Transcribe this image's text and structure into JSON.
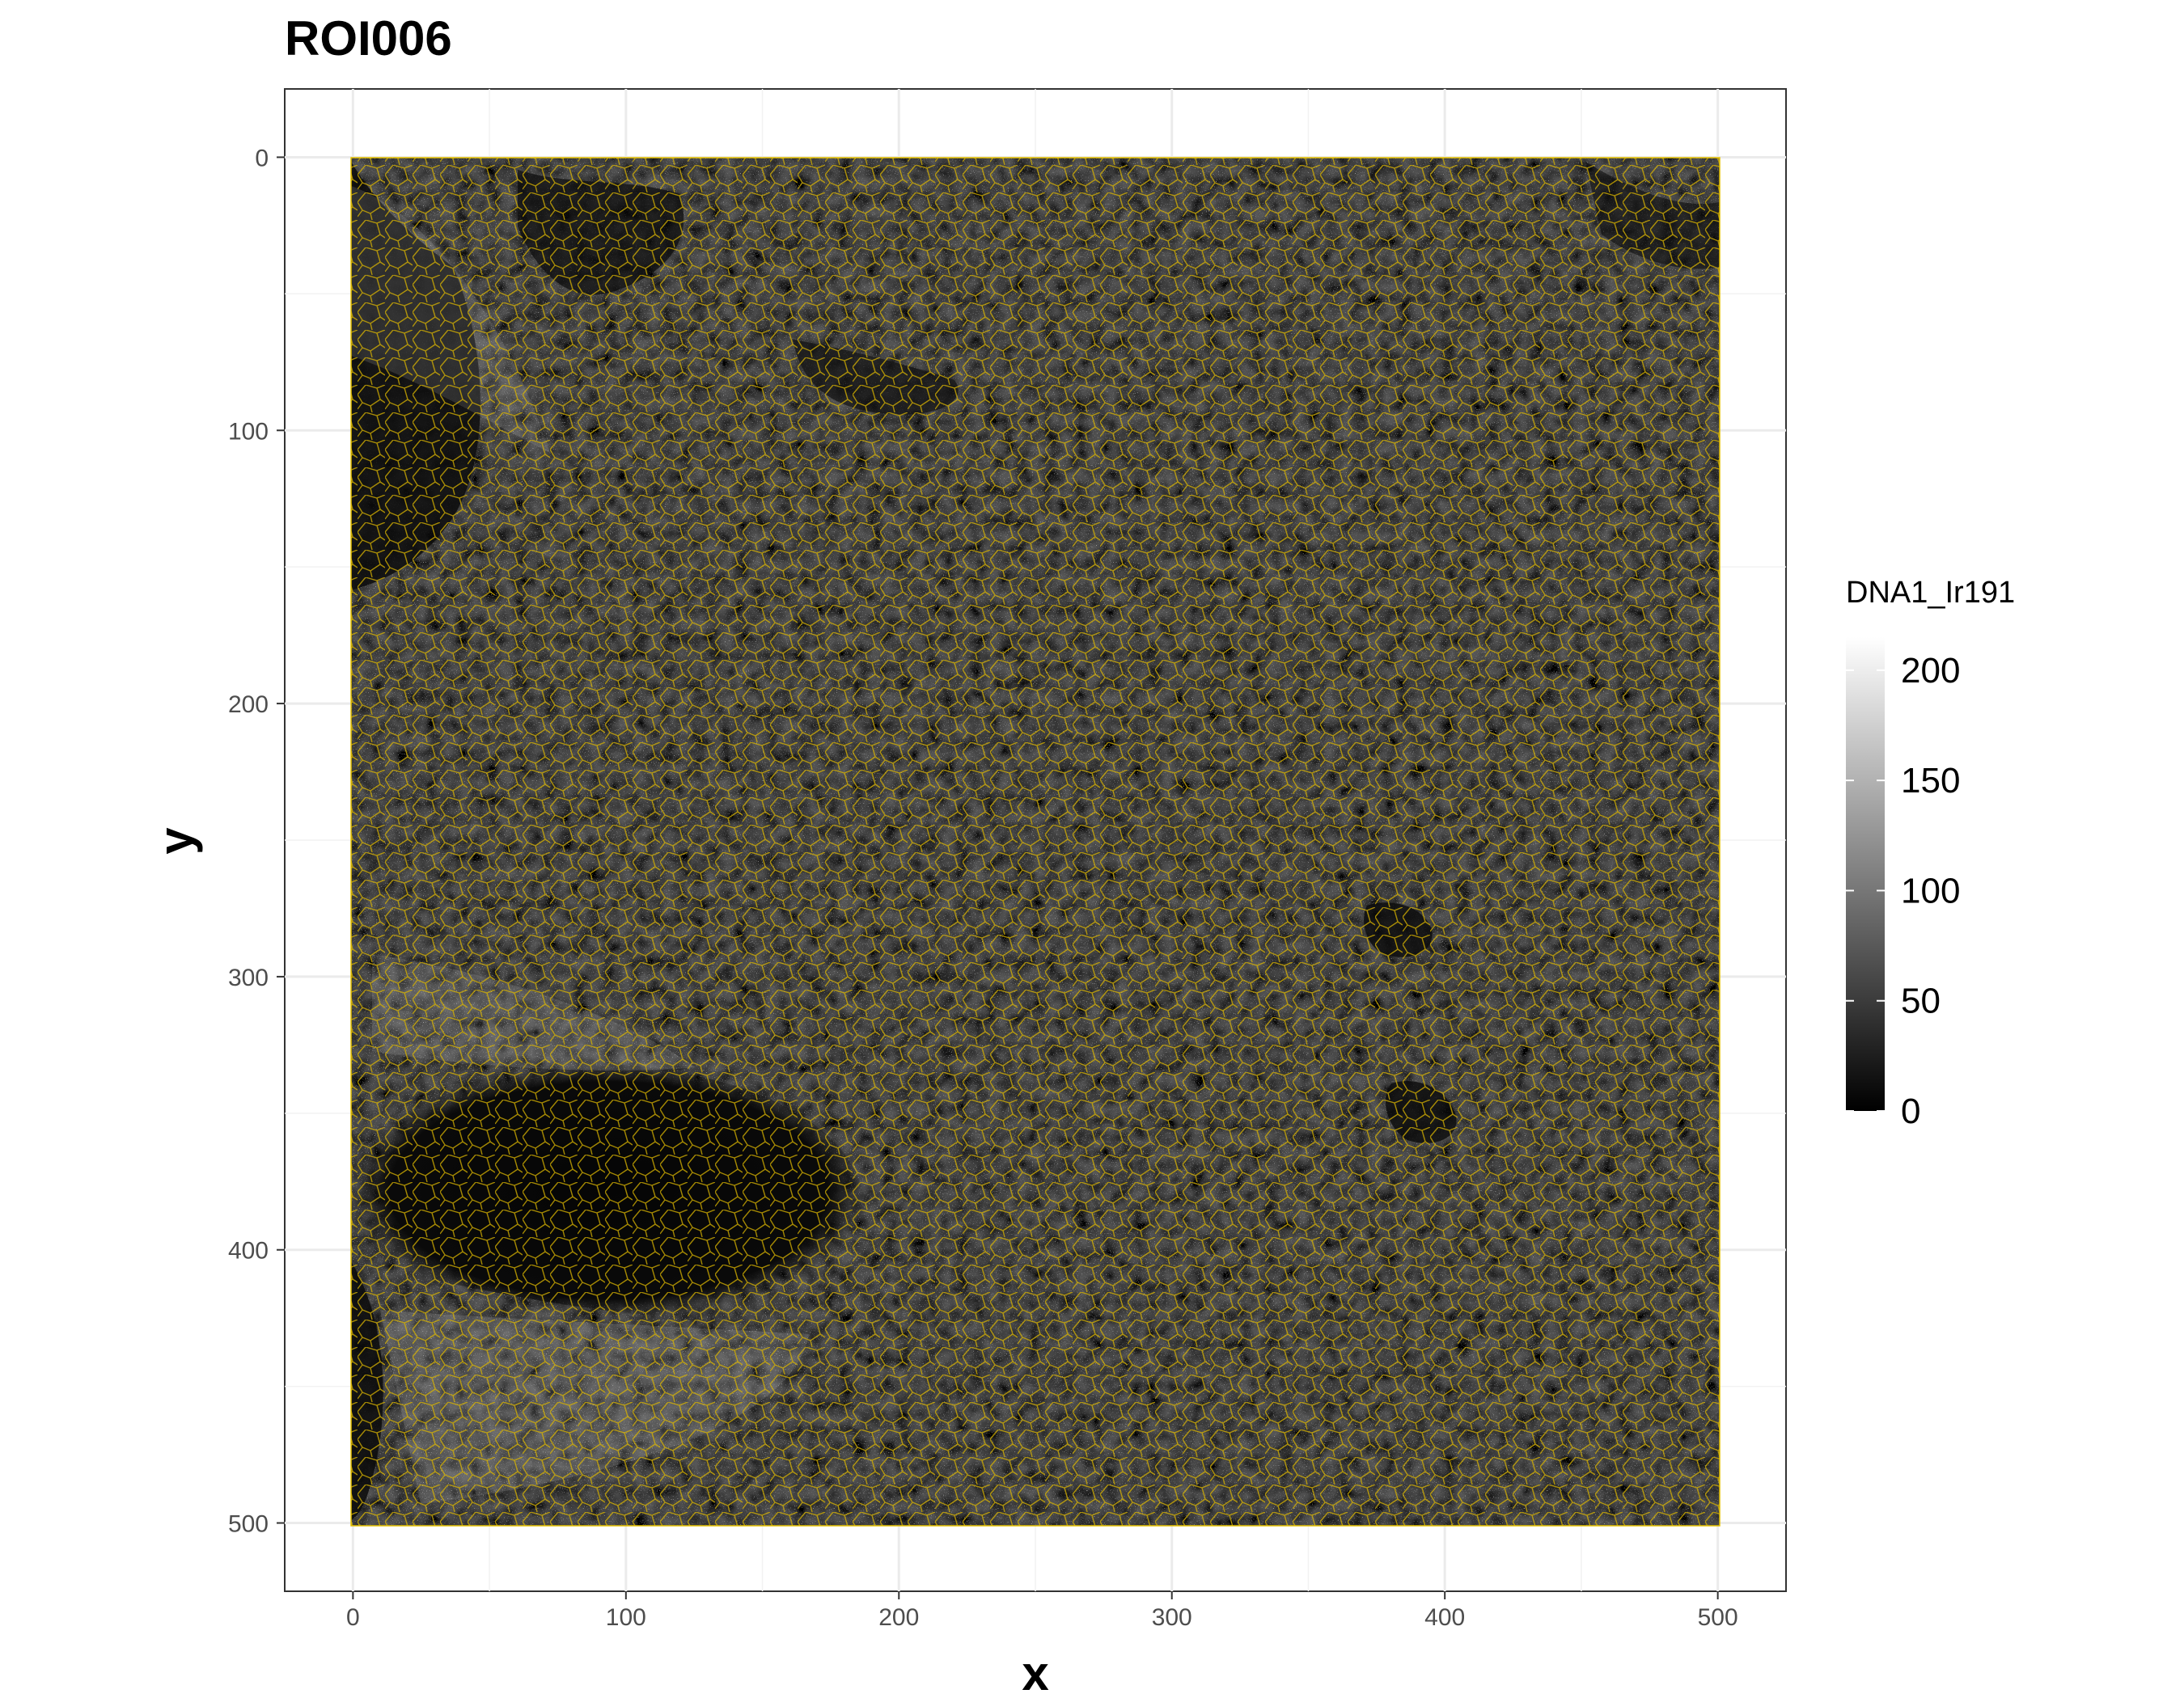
{
  "chart_data": {
    "type": "heatmap",
    "title": "ROI006",
    "xlabel": "x",
    "ylabel": "y",
    "xlim": [
      -25,
      525
    ],
    "ylim": [
      -25,
      525
    ],
    "y_reversed": true,
    "x_ticks": [
      0,
      100,
      200,
      300,
      400,
      500
    ],
    "y_ticks": [
      0,
      100,
      200,
      300,
      400,
      500
    ],
    "x_tick_labels": [
      "0",
      "100",
      "200",
      "300",
      "400",
      "500"
    ],
    "y_tick_labels": [
      "0",
      "100",
      "200",
      "300",
      "400",
      "500"
    ],
    "grid": true,
    "image_extent": {
      "x": [
        0,
        500
      ],
      "y": [
        0,
        500
      ]
    },
    "outline_color": "#e6c200",
    "legend": {
      "title": "DNA1_Ir191",
      "type": "colorbar",
      "range": [
        0,
        215
      ],
      "ticks": [
        0,
        50,
        100,
        150,
        200
      ],
      "tick_labels": [
        "0",
        "50",
        "100",
        "150",
        "200"
      ],
      "colors": [
        "#000000",
        "#ffffff"
      ],
      "placement": "right"
    }
  }
}
